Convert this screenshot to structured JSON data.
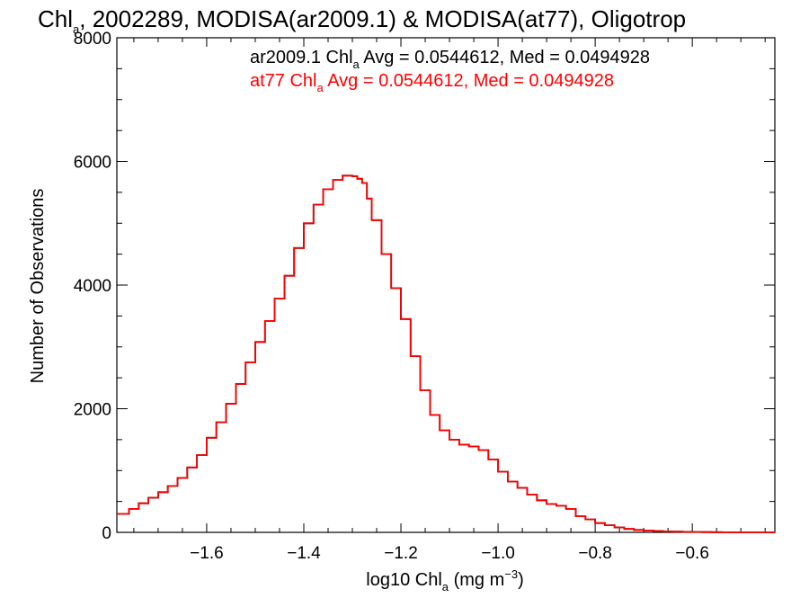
{
  "chart_data": {
    "type": "line",
    "title": {
      "prefix": "Chl",
      "sub": "a",
      "rest": ", 2002289, MODISA(ar2009.1) & MODISA(at77), Oligotrop"
    },
    "xlabel": {
      "prefix": "log10 Chl",
      "sub": "a",
      "rest": " (mg m",
      "sup": "−3",
      "close": ")"
    },
    "ylabel": "Number of Observations",
    "xlim": [
      -1.785,
      -0.43
    ],
    "ylim": [
      0,
      8000
    ],
    "x_ticks": [
      "−1.6",
      "−1.4",
      "−1.2",
      "−1.0",
      "−0.8",
      "−0.6"
    ],
    "x_tick_values": [
      -1.6,
      -1.4,
      -1.2,
      -1.0,
      -0.8,
      -0.6
    ],
    "y_ticks": [
      "0",
      "2000",
      "4000",
      "6000",
      "8000"
    ],
    "y_tick_values": [
      0,
      2000,
      4000,
      6000,
      8000
    ],
    "annotations": [
      {
        "name": "ar2009.1",
        "prefix": "ar2009.1 Chl",
        "sub": "a",
        "rest": " Avg = 0.0544612, Med = 0.0494928",
        "color": "#000000"
      },
      {
        "name": "at77",
        "prefix": "at77 Chl",
        "sub": "a",
        "rest": " Avg = 0.0544612, Med = 0.0494928",
        "color": "#ff0000"
      }
    ],
    "series": [
      {
        "name": "at77",
        "color": "#ff0000",
        "x": [
          -1.785,
          -1.76,
          -1.74,
          -1.72,
          -1.7,
          -1.68,
          -1.66,
          -1.64,
          -1.62,
          -1.6,
          -1.58,
          -1.56,
          -1.54,
          -1.52,
          -1.5,
          -1.48,
          -1.46,
          -1.44,
          -1.42,
          -1.4,
          -1.38,
          -1.36,
          -1.34,
          -1.32,
          -1.3,
          -1.29,
          -1.28,
          -1.27,
          -1.26,
          -1.24,
          -1.22,
          -1.2,
          -1.18,
          -1.16,
          -1.14,
          -1.12,
          -1.1,
          -1.08,
          -1.06,
          -1.04,
          -1.02,
          -1.0,
          -0.98,
          -0.96,
          -0.94,
          -0.92,
          -0.9,
          -0.88,
          -0.86,
          -0.84,
          -0.82,
          -0.8,
          -0.78,
          -0.76,
          -0.74,
          -0.72,
          -0.7,
          -0.68,
          -0.66,
          -0.64,
          -0.62,
          -0.6,
          -0.58,
          -0.56,
          -0.54,
          -0.52,
          -0.5,
          -0.48,
          -0.46,
          -0.44
        ],
        "y": [
          300,
          380,
          470,
          560,
          650,
          750,
          880,
          1050,
          1250,
          1530,
          1780,
          2080,
          2400,
          2750,
          3080,
          3420,
          3780,
          4150,
          4600,
          5000,
          5300,
          5550,
          5700,
          5770,
          5760,
          5720,
          5650,
          5400,
          5050,
          4500,
          3950,
          3450,
          2850,
          2300,
          1900,
          1650,
          1500,
          1420,
          1390,
          1330,
          1180,
          980,
          820,
          720,
          610,
          520,
          460,
          430,
          380,
          260,
          210,
          150,
          115,
          80,
          55,
          40,
          30,
          22,
          15,
          12,
          8,
          6,
          4,
          3,
          2,
          2,
          1,
          1,
          1,
          0
        ]
      },
      {
        "name": "ar2009.1",
        "color": "#000000",
        "x": [
          -1.785,
          -1.76,
          -1.74,
          -1.72,
          -1.7,
          -1.68,
          -1.66,
          -1.64,
          -1.62,
          -1.6,
          -1.58,
          -1.56,
          -1.54,
          -1.52,
          -1.5,
          -1.48,
          -1.46,
          -1.44,
          -1.42,
          -1.4,
          -1.38,
          -1.36,
          -1.34,
          -1.32,
          -1.3,
          -1.29,
          -1.28,
          -1.27,
          -1.26,
          -1.24,
          -1.22,
          -1.2,
          -1.18,
          -1.16,
          -1.14,
          -1.12,
          -1.1,
          -1.08,
          -1.06,
          -1.04,
          -1.02,
          -1.0,
          -0.98,
          -0.96,
          -0.94,
          -0.92,
          -0.9,
          -0.88,
          -0.86,
          -0.84,
          -0.82,
          -0.8,
          -0.78,
          -0.76,
          -0.74,
          -0.72,
          -0.7,
          -0.68,
          -0.66,
          -0.64,
          -0.62,
          -0.6,
          -0.58,
          -0.56,
          -0.54,
          -0.52,
          -0.5,
          -0.48,
          -0.46,
          -0.44
        ],
        "y": [
          300,
          380,
          470,
          560,
          650,
          750,
          880,
          1050,
          1250,
          1530,
          1780,
          2080,
          2400,
          2750,
          3080,
          3420,
          3780,
          4150,
          4600,
          5000,
          5300,
          5550,
          5700,
          5770,
          5760,
          5720,
          5650,
          5400,
          5050,
          4500,
          3950,
          3450,
          2850,
          2300,
          1900,
          1650,
          1500,
          1420,
          1390,
          1330,
          1180,
          980,
          820,
          720,
          610,
          520,
          460,
          430,
          380,
          260,
          210,
          150,
          115,
          80,
          55,
          40,
          30,
          22,
          15,
          12,
          8,
          6,
          4,
          3,
          2,
          2,
          1,
          1,
          1,
          0
        ]
      }
    ]
  }
}
